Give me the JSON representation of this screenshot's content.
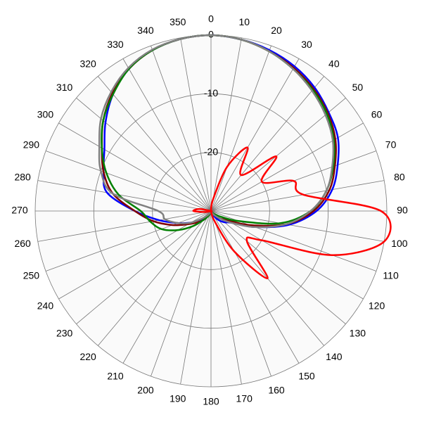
{
  "chart_data": {
    "type": "polar",
    "theta": [
      0,
      10,
      20,
      30,
      40,
      50,
      60,
      70,
      80,
      90,
      100,
      110,
      120,
      130,
      140,
      150,
      160,
      170,
      180,
      190,
      200,
      210,
      220,
      230,
      240,
      250,
      260,
      270,
      280,
      290,
      300,
      310,
      320,
      330,
      340,
      350
    ],
    "thetaticks": [
      0,
      10,
      20,
      30,
      40,
      50,
      60,
      70,
      80,
      90,
      100,
      110,
      120,
      130,
      140,
      150,
      160,
      170,
      180,
      190,
      200,
      210,
      220,
      230,
      240,
      250,
      260,
      270,
      280,
      290,
      300,
      310,
      320,
      330,
      340,
      350
    ],
    "rlim": [
      -30,
      0
    ],
    "rticks": [
      0,
      -10,
      -20
    ],
    "grid": true,
    "series": [
      {
        "color": "#0000ff",
        "values": [
          0,
          -0.3,
          -0.8,
          -1.5,
          -2.5,
          -3.8,
          -5,
          -7,
          -9,
          -12,
          -16.5,
          -22,
          -26,
          -27,
          -28,
          -29,
          -29.5,
          -30,
          -30,
          -30,
          -29.5,
          -29,
          -28.5,
          -27.5,
          -26,
          -24,
          -21,
          -17,
          -12,
          -10.5,
          -9,
          -6.5,
          -4,
          -2,
          -0.8,
          -0.2
        ]
      },
      {
        "color": "#800000",
        "values": [
          0,
          -0.3,
          -1,
          -1.8,
          -2.8,
          -4,
          -5.5,
          -7.5,
          -9.5,
          -12.5,
          -17,
          -23,
          -27,
          -28,
          -29,
          -29.5,
          -30,
          -30,
          -30,
          -30,
          -29.5,
          -29,
          -28,
          -27,
          -25.5,
          -23,
          -20,
          -17,
          -13,
          -10.5,
          -8.5,
          -6,
          -3.8,
          -2,
          -0.8,
          -0.2
        ]
      },
      {
        "color": "#008000",
        "values": [
          0,
          -0.3,
          -1,
          -2,
          -3,
          -4.2,
          -5.8,
          -7.8,
          -10,
          -13,
          -18,
          -25,
          -28,
          -29,
          -29.5,
          -30,
          -30,
          -30,
          -30,
          -30,
          -29.5,
          -29,
          -28,
          -26,
          -23.5,
          -21,
          -19.5,
          -18,
          -14,
          -11,
          -8.5,
          -6,
          -4,
          -2,
          -0.8,
          -0.2
        ]
      },
      {
        "color": "#808080",
        "values": [
          0,
          -0.3,
          -1,
          -2,
          -3.2,
          -4.5,
          -6,
          -8,
          -10,
          -13,
          -17,
          -22,
          -26,
          -28,
          -29,
          -29.5,
          -30,
          -30,
          -30,
          -30,
          -30,
          -29.5,
          -29,
          -28,
          -26,
          -24,
          -22,
          -21,
          -13,
          -10,
          -8,
          -5.5,
          -3.5,
          -1.8,
          -0.7,
          -0.2
        ]
      },
      {
        "color": "#ff0000",
        "values": [
          -30,
          -28,
          -22,
          -17.5,
          -22,
          -15.5,
          -20,
          -15,
          -14,
          -1,
          0,
          -8,
          -20,
          -22,
          -15,
          -22,
          -28,
          -30,
          -30,
          -30,
          -30,
          -30,
          -30,
          -30,
          -30,
          -30,
          -29,
          -27,
          -28,
          -30,
          -30,
          -30,
          -30,
          -30,
          -30,
          -30
        ]
      }
    ]
  }
}
